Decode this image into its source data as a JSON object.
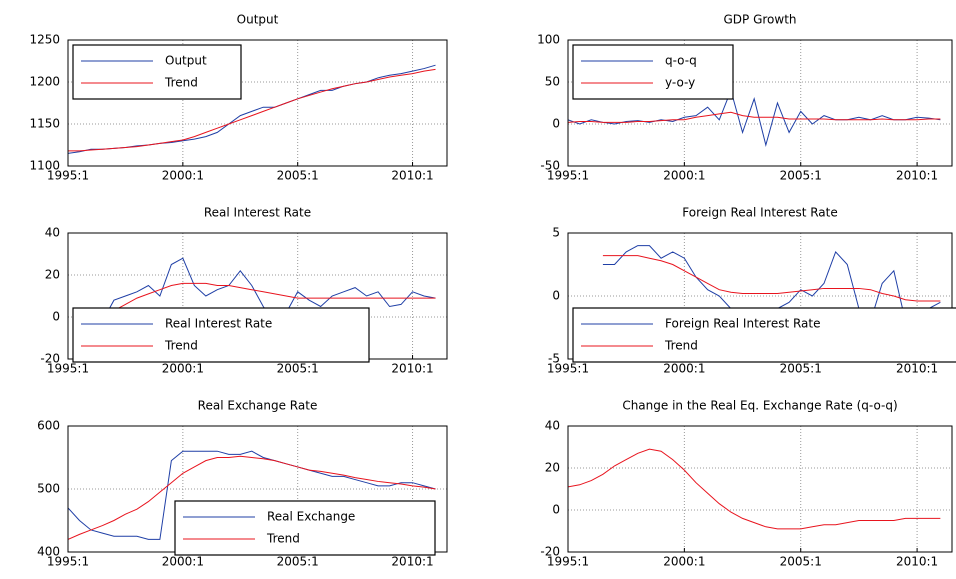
{
  "chart_data": [
    {
      "type": "line",
      "title": "Output",
      "legend": "upper left",
      "grid": true,
      "x": [
        1995,
        1995.5,
        1996,
        1996.5,
        1997,
        1997.5,
        1998,
        1998.5,
        1999,
        1999.5,
        2000,
        2000.5,
        2001,
        2001.5,
        2002,
        2002.5,
        2003,
        2003.5,
        2004,
        2004.5,
        2005,
        2005.5,
        2006,
        2006.5,
        2007,
        2007.5,
        2008,
        2008.5,
        2009,
        2009.5,
        2010,
        2010.5,
        2011
      ],
      "xlim": [
        1995,
        2011.5
      ],
      "xticks": [
        {
          "value": 1995,
          "label": "1995:1"
        },
        {
          "value": 2000,
          "label": "2000:1"
        },
        {
          "value": 2005,
          "label": "2005:1"
        },
        {
          "value": 2010,
          "label": "2010:1"
        }
      ],
      "ylim": [
        1100,
        1250
      ],
      "yticks": [
        1100,
        1150,
        1200,
        1250
      ],
      "series": [
        {
          "name": "Output",
          "color": "#1f3fa6",
          "values": [
            1115,
            1117,
            1120,
            1120,
            1121,
            1122,
            1124,
            1125,
            1127,
            1128,
            1130,
            1132,
            1135,
            1140,
            1150,
            1160,
            1165,
            1170,
            1170,
            1175,
            1180,
            1185,
            1190,
            1190,
            1195,
            1198,
            1200,
            1205,
            1208,
            1210,
            1213,
            1216,
            1220
          ]
        },
        {
          "name": "Trend",
          "color": "#e8141e",
          "values": [
            1118,
            1118,
            1119,
            1120,
            1121,
            1122,
            1123,
            1125,
            1127,
            1129,
            1131,
            1135,
            1140,
            1145,
            1150,
            1155,
            1160,
            1165,
            1170,
            1175,
            1180,
            1184,
            1188,
            1192,
            1195,
            1198,
            1200,
            1203,
            1206,
            1208,
            1210,
            1213,
            1215
          ]
        }
      ]
    },
    {
      "type": "line",
      "title": "GDP Growth",
      "legend": "upper left",
      "grid": true,
      "x": [
        1995,
        1995.5,
        1996,
        1996.5,
        1997,
        1997.5,
        1998,
        1998.5,
        1999,
        1999.5,
        2000,
        2000.5,
        2001,
        2001.5,
        2002,
        2002.5,
        2003,
        2003.5,
        2004,
        2004.5,
        2005,
        2005.5,
        2006,
        2006.5,
        2007,
        2007.5,
        2008,
        2008.5,
        2009,
        2009.5,
        2010,
        2010.5,
        2011
      ],
      "xlim": [
        1995,
        2011.5
      ],
      "xticks": [
        {
          "value": 1995,
          "label": "1995:1"
        },
        {
          "value": 2000,
          "label": "2000:1"
        },
        {
          "value": 2005,
          "label": "2005:1"
        },
        {
          "value": 2010,
          "label": "2010:1"
        }
      ],
      "ylim": [
        -50,
        100
      ],
      "yticks": [
        -50,
        0,
        50,
        100
      ],
      "series": [
        {
          "name": "q-o-q",
          "color": "#1f3fa6",
          "values": [
            5,
            0,
            5,
            2,
            0,
            3,
            4,
            2,
            5,
            3,
            8,
            10,
            20,
            5,
            40,
            -10,
            30,
            -25,
            25,
            -10,
            15,
            0,
            10,
            5,
            5,
            8,
            5,
            10,
            5,
            5,
            8,
            7,
            5
          ]
        },
        {
          "name": "y-o-y",
          "color": "#e8141e",
          "values": [
            2,
            3,
            3,
            2,
            2,
            2,
            3,
            3,
            4,
            5,
            5,
            8,
            10,
            12,
            14,
            10,
            8,
            8,
            8,
            6,
            6,
            6,
            6,
            5,
            5,
            5,
            5,
            6,
            5,
            5,
            5,
            6,
            6
          ]
        }
      ]
    },
    {
      "type": "line",
      "title": "Real Interest Rate",
      "legend": "lower left",
      "grid": true,
      "x": [
        1995,
        1995.5,
        1996,
        1996.5,
        1997,
        1997.5,
        1998,
        1998.5,
        1999,
        1999.5,
        2000,
        2000.5,
        2001,
        2001.5,
        2002,
        2002.5,
        2003,
        2003.5,
        2004,
        2004.5,
        2005,
        2005.5,
        2006,
        2006.5,
        2007,
        2007.5,
        2008,
        2008.5,
        2009,
        2009.5,
        2010,
        2010.5,
        2011
      ],
      "xlim": [
        1995,
        2011.5
      ],
      "xticks": [
        {
          "value": 1995,
          "label": "1995:1"
        },
        {
          "value": 2000,
          "label": "2000:1"
        },
        {
          "value": 2005,
          "label": "2005:1"
        },
        {
          "value": 2010,
          "label": "2010:1"
        }
      ],
      "ylim": [
        -20,
        40
      ],
      "yticks": [
        -20,
        0,
        20,
        40
      ],
      "series": [
        {
          "name": "Real Interest Rate",
          "color": "#1f3fa6",
          "values": [
            null,
            null,
            null,
            -2,
            8,
            10,
            12,
            15,
            10,
            25,
            28,
            15,
            10,
            13,
            15,
            22,
            15,
            5,
            -3,
            2,
            12,
            8,
            5,
            10,
            12,
            14,
            10,
            12,
            5,
            6,
            12,
            10,
            9
          ]
        },
        {
          "name": "Trend",
          "color": "#e8141e",
          "values": [
            null,
            null,
            null,
            0,
            3,
            6,
            9,
            11,
            13,
            15,
            16,
            16,
            16,
            15,
            15,
            14,
            13,
            12,
            11,
            10,
            9,
            9,
            9,
            9,
            9,
            9,
            9,
            9,
            9,
            9,
            9,
            9,
            9
          ]
        }
      ]
    },
    {
      "type": "line",
      "title": "Foreign Real Interest Rate",
      "legend": "lower left",
      "grid": true,
      "x": [
        1995,
        1995.5,
        1996,
        1996.5,
        1997,
        1997.5,
        1998,
        1998.5,
        1999,
        1999.5,
        2000,
        2000.5,
        2001,
        2001.5,
        2002,
        2002.5,
        2003,
        2003.5,
        2004,
        2004.5,
        2005,
        2005.5,
        2006,
        2006.5,
        2007,
        2007.5,
        2008,
        2008.5,
        2009,
        2009.5,
        2010,
        2010.5,
        2011
      ],
      "xlim": [
        1995,
        2011.5
      ],
      "xticks": [
        {
          "value": 1995,
          "label": "1995:1"
        },
        {
          "value": 2000,
          "label": "2000:1"
        },
        {
          "value": 2005,
          "label": "2005:1"
        },
        {
          "value": 2010,
          "label": "2010:1"
        }
      ],
      "ylim": [
        -5,
        5
      ],
      "yticks": [
        -5,
        0,
        5
      ],
      "series": [
        {
          "name": "Foreign Real Interest Rate",
          "color": "#1f3fa6",
          "values": [
            null,
            null,
            null,
            2.5,
            2.5,
            3.5,
            4,
            4,
            3,
            3.5,
            3,
            1.5,
            0.5,
            0,
            -1,
            -2,
            -1,
            -1,
            -1,
            -0.5,
            0.5,
            0,
            1,
            3.5,
            2.5,
            -1,
            -2,
            1,
            2,
            -2,
            -1,
            -1,
            -0.5
          ]
        },
        {
          "name": "Trend",
          "color": "#e8141e",
          "values": [
            null,
            null,
            null,
            3.2,
            3.2,
            3.2,
            3.2,
            3.0,
            2.8,
            2.5,
            2.0,
            1.5,
            1.0,
            0.5,
            0.3,
            0.2,
            0.2,
            0.2,
            0.2,
            0.3,
            0.4,
            0.5,
            0.6,
            0.6,
            0.6,
            0.6,
            0.5,
            0.2,
            0,
            -0.3,
            -0.4,
            -0.4,
            -0.4
          ]
        }
      ]
    },
    {
      "type": "line",
      "title": "Real Exchange Rate",
      "legend": "lower right",
      "grid": true,
      "x": [
        1995,
        1995.5,
        1996,
        1996.5,
        1997,
        1997.5,
        1998,
        1998.5,
        1999,
        1999.5,
        2000,
        2000.5,
        2001,
        2001.5,
        2002,
        2002.5,
        2003,
        2003.5,
        2004,
        2004.5,
        2005,
        2005.5,
        2006,
        2006.5,
        2007,
        2007.5,
        2008,
        2008.5,
        2009,
        2009.5,
        2010,
        2010.5,
        2011
      ],
      "xlim": [
        1995,
        2011.5
      ],
      "xticks": [
        {
          "value": 1995,
          "label": "1995:1"
        },
        {
          "value": 2000,
          "label": "2000:1"
        },
        {
          "value": 2005,
          "label": "2005:1"
        },
        {
          "value": 2010,
          "label": "2010:1"
        }
      ],
      "ylim": [
        400,
        600
      ],
      "yticks": [
        400,
        500,
        600
      ],
      "series": [
        {
          "name": "Real Exchange",
          "color": "#1f3fa6",
          "values": [
            470,
            450,
            435,
            430,
            425,
            425,
            425,
            420,
            420,
            545,
            560,
            560,
            560,
            560,
            555,
            555,
            560,
            550,
            545,
            540,
            535,
            530,
            525,
            520,
            520,
            515,
            510,
            505,
            505,
            510,
            510,
            505,
            500
          ]
        },
        {
          "name": "Trend",
          "color": "#e8141e",
          "values": [
            420,
            428,
            435,
            442,
            450,
            460,
            468,
            480,
            495,
            510,
            525,
            535,
            545,
            550,
            550,
            552,
            550,
            548,
            545,
            540,
            535,
            530,
            528,
            525,
            522,
            518,
            515,
            512,
            510,
            508,
            505,
            503,
            500
          ]
        }
      ]
    },
    {
      "type": "line",
      "title": "Change in the Real Eq. Exchange Rate (q-o-q)",
      "grid": true,
      "x": [
        1995,
        1995.5,
        1996,
        1996.5,
        1997,
        1997.5,
        1998,
        1998.5,
        1999,
        1999.5,
        2000,
        2000.5,
        2001,
        2001.5,
        2002,
        2002.5,
        2003,
        2003.5,
        2004,
        2004.5,
        2005,
        2005.5,
        2006,
        2006.5,
        2007,
        2007.5,
        2008,
        2008.5,
        2009,
        2009.5,
        2010,
        2010.5,
        2011
      ],
      "xlim": [
        1995,
        2011.5
      ],
      "xticks": [
        {
          "value": 1995,
          "label": "1995:1"
        },
        {
          "value": 2000,
          "label": "2000:1"
        },
        {
          "value": 2005,
          "label": "2005:1"
        },
        {
          "value": 2010,
          "label": "2010:1"
        }
      ],
      "ylim": [
        -20,
        40
      ],
      "yticks": [
        -20,
        0,
        20,
        40
      ],
      "series": [
        {
          "color": "#e8141e",
          "values": [
            11,
            12,
            14,
            17,
            21,
            24,
            27,
            29,
            28,
            24,
            19,
            13,
            8,
            3,
            -1,
            -4,
            -6,
            -8,
            -9,
            -9,
            -9,
            -8,
            -7,
            -7,
            -6,
            -5,
            -5,
            -5,
            -5,
            -4,
            -4,
            -4,
            -4
          ]
        }
      ]
    }
  ]
}
